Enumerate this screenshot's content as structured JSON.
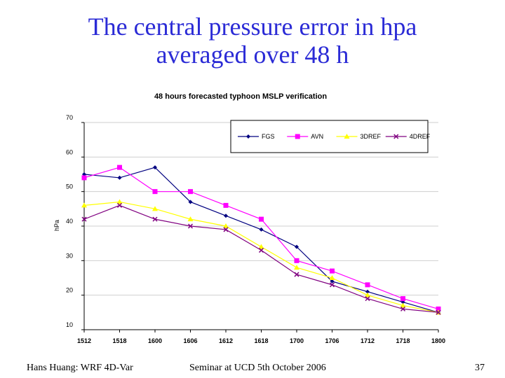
{
  "slide": {
    "title_line1": "The central pressure error in hpa",
    "title_line2": "averaged over 48 h",
    "footer_left": "Hans Huang: WRF 4D-Var",
    "footer_center": "Seminar at UCD  5th October 2006",
    "page_number": "37"
  },
  "chart_data": {
    "type": "line",
    "title": "48 hours forecasted typhoon MSLP verification",
    "xlabel": "",
    "ylabel": "hPa",
    "categories": [
      "1512",
      "1518",
      "1600",
      "1606",
      "1612",
      "1618",
      "1700",
      "1706",
      "1712",
      "1718",
      "1800"
    ],
    "ylim": [
      10,
      70
    ],
    "yticks": [
      10,
      20,
      30,
      40,
      50,
      60,
      70
    ],
    "grid": true,
    "legend_position": "top-right",
    "series": [
      {
        "name": "FGS",
        "color": "#000080",
        "marker": "diamond",
        "values": [
          55,
          54,
          57,
          47,
          43,
          39,
          34,
          24,
          21,
          18,
          15
        ]
      },
      {
        "name": "AVN",
        "color": "#ff00ff",
        "marker": "square",
        "values": [
          54,
          57,
          50,
          50,
          46,
          42,
          30,
          27,
          23,
          19,
          16
        ]
      },
      {
        "name": "3DREF",
        "color": "#ffff00",
        "marker": "triangle",
        "values": [
          46,
          47,
          45,
          42,
          40,
          34,
          28,
          25,
          20,
          17,
          15
        ]
      },
      {
        "name": "4DREF",
        "color": "#800080",
        "marker": "x",
        "values": [
          42,
          46,
          42,
          40,
          39,
          33,
          26,
          23,
          19,
          16,
          15
        ]
      }
    ]
  }
}
